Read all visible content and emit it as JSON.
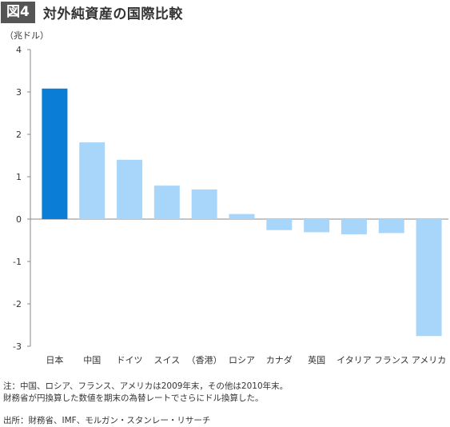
{
  "header": {
    "figure_label": "図4",
    "title": "対外純資産の国際比較"
  },
  "chart_data": {
    "type": "bar",
    "title": "対外純資産の国際比較",
    "unit_label": "（兆ドル）",
    "categories": [
      "日本",
      "中国",
      "ドイツ",
      "スイス",
      "（香港）",
      "ロシア",
      "カナダ",
      "英国",
      "イタリア",
      "フランス",
      "アメリカ"
    ],
    "values": [
      3.08,
      1.81,
      1.4,
      0.79,
      0.7,
      0.12,
      -0.26,
      -0.31,
      -0.36,
      -0.33,
      -2.76
    ],
    "yticks": [
      4,
      3,
      2,
      1,
      0,
      -1,
      -2,
      -3
    ],
    "ylim": [
      -3,
      4
    ],
    "highlight_index": 0,
    "colors": {
      "highlight": "#0a7ed6",
      "normal": "#a8d6fb",
      "axis": "#888888"
    }
  },
  "footer": {
    "note_line1": "注：中国、ロシア、フランス、アメリカは2009年末，その他は2010年末。",
    "note_line2": "財務省が円換算した数値を期末の為替レートでさらにドル換算した。",
    "source": "出所：財務省、IMF、モルガン・スタンレー・リサーチ"
  }
}
